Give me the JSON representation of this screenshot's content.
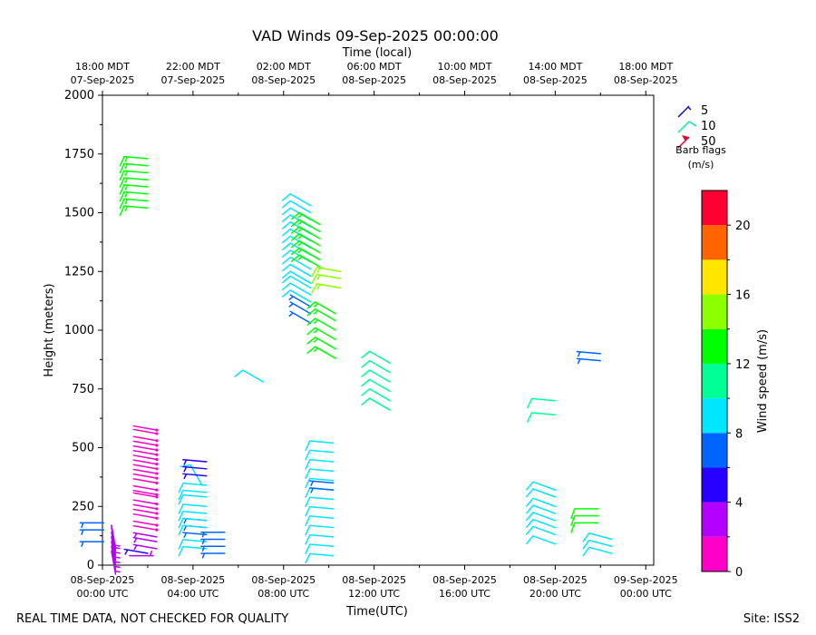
{
  "chart_data": {
    "type": "wind_barb",
    "title": "VAD Winds 09-Sep-2025 00:00:00",
    "top_axis_label": "Time (local)",
    "xlabel": "Time(UTC)",
    "ylabel": "Height (meters)",
    "xlim_hours": [
      0,
      24.35
    ],
    "ylim": [
      0,
      2000
    ],
    "y_ticks": [
      0,
      250,
      500,
      750,
      1000,
      1250,
      1500,
      1750,
      2000
    ],
    "x_ticks": [
      {
        "hour": 0,
        "line1": "08-Sep-2025",
        "line2": "00:00 UTC"
      },
      {
        "hour": 4,
        "line1": "08-Sep-2025",
        "line2": "04:00 UTC"
      },
      {
        "hour": 8,
        "line1": "08-Sep-2025",
        "line2": "08:00 UTC"
      },
      {
        "hour": 12,
        "line1": "08-Sep-2025",
        "line2": "12:00 UTC"
      },
      {
        "hour": 16,
        "line1": "08-Sep-2025",
        "line2": "16:00 UTC"
      },
      {
        "hour": 20,
        "line1": "08-Sep-2025",
        "line2": "20:00 UTC"
      },
      {
        "hour": 24,
        "line1": "09-Sep-2025",
        "line2": "00:00 UTC"
      }
    ],
    "top_ticks": [
      {
        "hour": 0,
        "line1": "18:00 MDT",
        "line2": "07-Sep-2025"
      },
      {
        "hour": 4,
        "line1": "22:00 MDT",
        "line2": "07-Sep-2025"
      },
      {
        "hour": 8,
        "line1": "02:00 MDT",
        "line2": "08-Sep-2025"
      },
      {
        "hour": 12,
        "line1": "06:00 MDT",
        "line2": "08-Sep-2025"
      },
      {
        "hour": 16,
        "line1": "10:00 MDT",
        "line2": "08-Sep-2025"
      },
      {
        "hour": 20,
        "line1": "14:00 MDT",
        "line2": "08-Sep-2025"
      },
      {
        "hour": 24,
        "line1": "18:00 MDT",
        "line2": "08-Sep-2025"
      }
    ],
    "legend": {
      "title": "Barb flags",
      "units": "(m/s)",
      "entries": [
        {
          "label": "5",
          "color": "#1010c8"
        },
        {
          "label": "10",
          "color": "#00f0a0"
        },
        {
          "label": "50",
          "color": "#f00030"
        }
      ]
    },
    "colorbar": {
      "label": "Wind speed (m/s)",
      "min": 0,
      "max": 22,
      "ticks": [
        0,
        4,
        8,
        12,
        16,
        20
      ],
      "bins": [
        {
          "from": 0,
          "to": 2,
          "color": "#ff00c8"
        },
        {
          "from": 2,
          "to": 4,
          "color": "#b400ff"
        },
        {
          "from": 4,
          "to": 6,
          "color": "#2800ff"
        },
        {
          "from": 6,
          "to": 8,
          "color": "#0064ff"
        },
        {
          "from": 8,
          "to": 10,
          "color": "#00e6ff"
        },
        {
          "from": 10,
          "to": 12,
          "color": "#00ff96"
        },
        {
          "from": 12,
          "to": 14,
          "color": "#00ff00"
        },
        {
          "from": 14,
          "to": 16,
          "color": "#8cff00"
        },
        {
          "from": 16,
          "to": 18,
          "color": "#ffe600"
        },
        {
          "from": 18,
          "to": 20,
          "color": "#ff6400"
        },
        {
          "from": 20,
          "to": 22,
          "color": "#ff0032"
        }
      ]
    },
    "barb_groups": [
      {
        "time": 0.05,
        "heights": [
          100,
          150,
          180
        ],
        "speed": 6,
        "dir": 270
      },
      {
        "time": 0.4,
        "heights": [
          60,
          80,
          100,
          120,
          140,
          160,
          170
        ],
        "speed": 3,
        "dir": 170
      },
      {
        "time": 1.2,
        "heights": [
          40
        ],
        "speed": 3,
        "dir": 90
      },
      {
        "time": 2.0,
        "heights": [
          50
        ],
        "speed": 4,
        "dir": 280
      },
      {
        "time": 2.0,
        "heights": [
          1520,
          1550,
          1580,
          1610,
          1640,
          1670,
          1700,
          1730
        ],
        "speed": 13.5,
        "dir": 275
      },
      {
        "time": 2.4,
        "heights": [
          70,
          100,
          120
        ],
        "speed": 3,
        "dir": 280
      },
      {
        "time": 2.4,
        "heights": [
          150,
          170,
          200,
          220,
          240,
          260,
          290,
          300,
          320,
          350,
          370,
          390,
          410,
          430,
          450,
          470,
          490,
          510,
          530,
          560,
          575
        ],
        "speed": 1,
        "dir": 280
      },
      {
        "time": 4.4,
        "heights": [
          340
        ],
        "speed": 9,
        "dir": 330
      },
      {
        "time": 4.6,
        "heights": [
          380,
          410,
          440
        ],
        "speed": 5,
        "dir": 275
      },
      {
        "time": 4.6,
        "heights": [
          130,
          160,
          190
        ],
        "speed": 6,
        "dir": 275
      },
      {
        "time": 4.6,
        "heights": [
          70,
          100,
          160,
          190,
          220,
          250,
          290,
          310,
          340
        ],
        "speed": 9,
        "dir": 275
      },
      {
        "time": 5.4,
        "heights": [
          50,
          80,
          110,
          140
        ],
        "speed": 7,
        "dir": 270
      },
      {
        "time": 7.1,
        "heights": [
          780
        ],
        "speed": 9,
        "dir": 300
      },
      {
        "time": 9.2,
        "heights": [
          1030,
          1070,
          1100
        ],
        "speed": 7,
        "dir": 300
      },
      {
        "time": 9.2,
        "heights": [
          1120,
          1150,
          1180,
          1200,
          1230,
          1260,
          1290,
          1320,
          1350,
          1380,
          1410,
          1440,
          1470,
          1500,
          1530
        ],
        "speed": 9,
        "dir": 300
      },
      {
        "time": 9.6,
        "heights": [
          1270,
          1300,
          1330,
          1360,
          1390,
          1420,
          1450
        ],
        "speed": 12.5,
        "dir": 300
      },
      {
        "time": 10.2,
        "heights": [
          40,
          80,
          120,
          160,
          200,
          240,
          280,
          320,
          360,
          400,
          440,
          480,
          520
        ],
        "speed": 9,
        "dir": 275
      },
      {
        "time": 10.2,
        "heights": [
          320,
          350
        ],
        "speed": 6,
        "dir": 275
      },
      {
        "time": 10.3,
        "heights": [
          880,
          920,
          960,
          1000,
          1040,
          1070
        ],
        "speed": 13,
        "dir": 300
      },
      {
        "time": 10.5,
        "heights": [
          1180,
          1220,
          1250
        ],
        "speed": 14.5,
        "dir": 280
      },
      {
        "time": 12.7,
        "heights": [
          660,
          700,
          740,
          780,
          820,
          860
        ],
        "speed": 10,
        "dir": 300
      },
      {
        "time": 20.0,
        "heights": [
          640,
          700
        ],
        "speed": 10,
        "dir": 275
      },
      {
        "time": 20.0,
        "heights": [
          90,
          130,
          160,
          190,
          220,
          250,
          290,
          320
        ],
        "speed": 9,
        "dir": 290
      },
      {
        "time": 21.9,
        "heights": [
          180,
          210,
          240
        ],
        "speed": 12,
        "dir": 270
      },
      {
        "time": 22.0,
        "heights": [
          870,
          900
        ],
        "speed": 7,
        "dir": 275
      },
      {
        "time": 22.5,
        "heights": [
          50,
          80,
          110
        ],
        "speed": 9,
        "dir": 285
      }
    ]
  },
  "footer": {
    "left": "REAL TIME DATA, NOT CHECKED FOR QUALITY",
    "right": "Site: ISS2"
  }
}
